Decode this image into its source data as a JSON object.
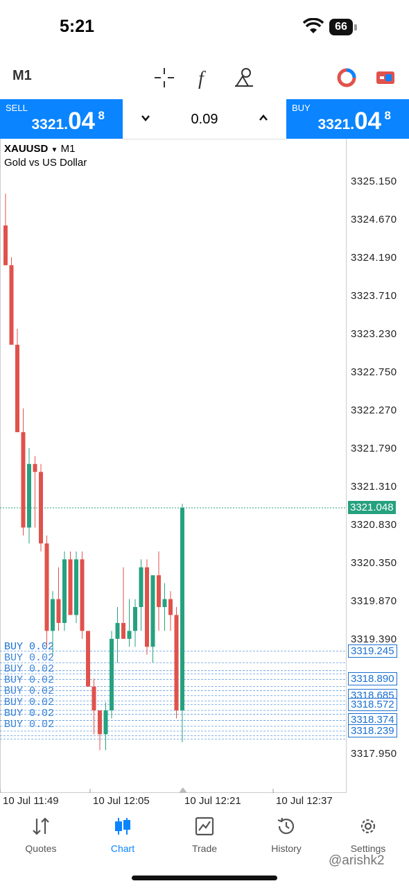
{
  "status": {
    "time": "5:21",
    "battery": "66"
  },
  "toolbar": {
    "timeframe": "M1"
  },
  "trade": {
    "sell_label": "SELL",
    "sell_price_small": "3321.",
    "sell_price_big": "04",
    "sell_price_sup": "8",
    "buy_label": "BUY",
    "buy_price_small": "3321.",
    "buy_price_big": "04",
    "buy_price_sup": "8",
    "lot": "0.09"
  },
  "chart": {
    "symbol": "XAUUSD",
    "timeframe": "M1",
    "description": "Gold vs US Dollar",
    "price_labels": [
      "3325.150",
      "3324.670",
      "3324.190",
      "3323.710",
      "3323.230",
      "3322.750",
      "3322.270",
      "3321.790",
      "3321.310",
      "3320.830",
      "3320.350",
      "3319.870",
      "3319.390",
      "3317.950"
    ],
    "current_price": "3321.048",
    "order_label": "BUY 0.02",
    "order_levels": [
      "3319.245",
      "3318.890",
      "3318.685",
      "3318.572",
      "3318.374",
      "3318.239"
    ],
    "time_labels": [
      "10 Jul 11:49",
      "10 Jul 12:05",
      "10 Jul 12:21",
      "10 Jul 12:37"
    ],
    "colors": {
      "up": "#26a17f",
      "down": "#e0524c",
      "order": "#1a6fd1",
      "accent": "#0a84ff"
    }
  },
  "nav": {
    "items": [
      {
        "label": "Quotes",
        "icon": "quotes-icon"
      },
      {
        "label": "Chart",
        "icon": "chart-icon",
        "active": true
      },
      {
        "label": "Trade",
        "icon": "trade-icon"
      },
      {
        "label": "History",
        "icon": "history-icon"
      },
      {
        "label": "Settings",
        "icon": "settings-icon"
      }
    ]
  },
  "watermark": "@arishk2"
}
